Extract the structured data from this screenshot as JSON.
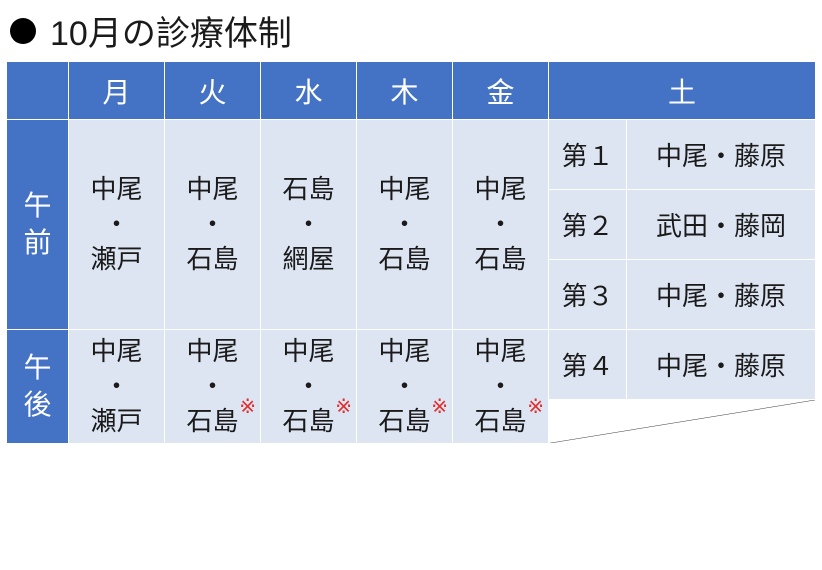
{
  "title": "10月の診療体制",
  "header": {
    "mon": "月",
    "tue": "火",
    "wed": "水",
    "thu": "木",
    "fri": "金",
    "sat": "土"
  },
  "rowLabels": {
    "am": "午前",
    "pm": "午後"
  },
  "weekday": {
    "am": {
      "mon": "中尾\n・\n瀬戸",
      "tue": "中尾\n・\n石島",
      "wed": "石島\n・\n網屋",
      "thu": "中尾\n・\n石島",
      "fri": "中尾\n・\n石島"
    },
    "pm": {
      "mon": "中尾\n・\n瀬戸",
      "tue": "中尾\n・\n石島",
      "wed": "中尾\n・\n石島",
      "thu": "中尾\n・\n石島",
      "fri": "中尾\n・\n石島"
    }
  },
  "saturday": {
    "w1": {
      "label": "第１",
      "names": "中尾・藤原"
    },
    "w2": {
      "label": "第２",
      "names": "武田・藤岡"
    },
    "w3": {
      "label": "第３",
      "names": "中尾・藤原"
    },
    "w4": {
      "label": "第４",
      "names": "中尾・藤原"
    }
  },
  "asterisk": "※",
  "colors": {
    "headerBg": "#4472c4",
    "headerFg": "#ffffff",
    "cellBg": "#dde5f2",
    "cellFg": "#1a1a1a",
    "asterisk": "#e03030",
    "emptyBorder": "#3a3a3a",
    "cellBorder": "#ffffff"
  }
}
